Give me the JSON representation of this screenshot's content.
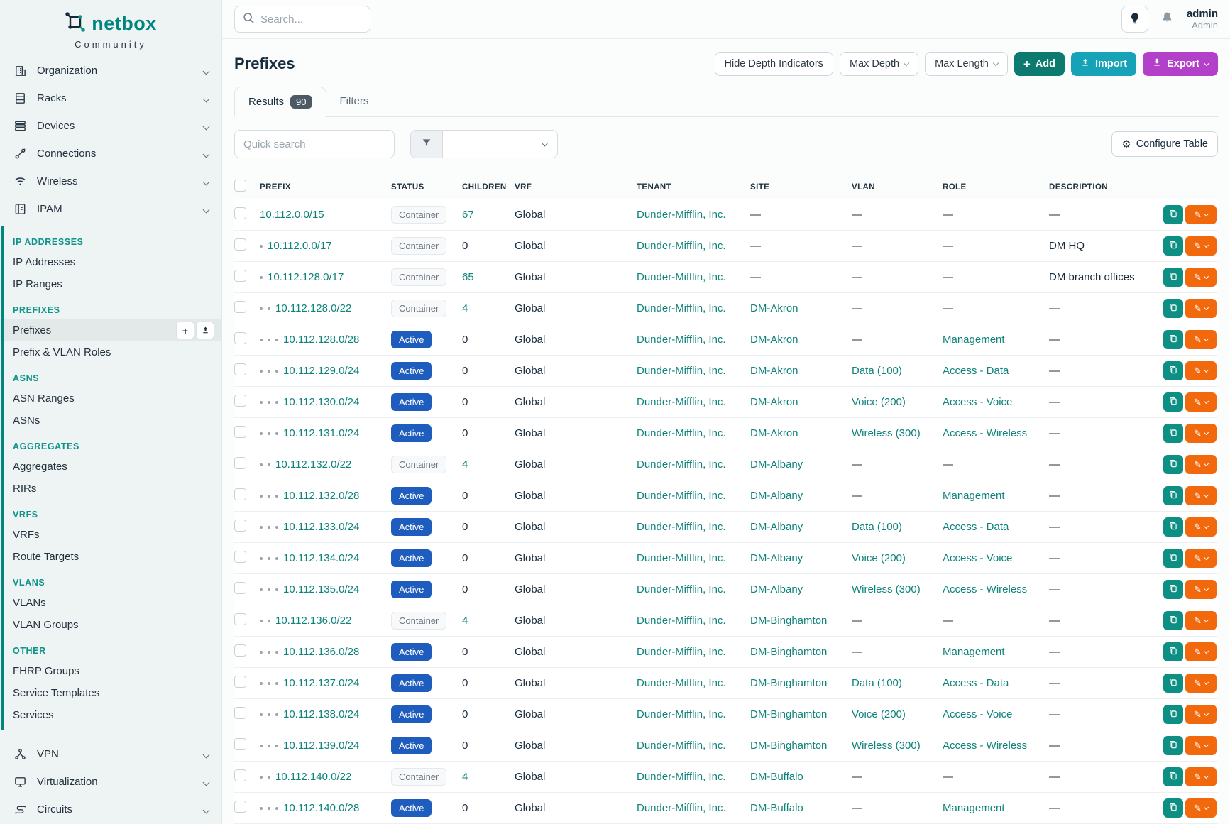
{
  "brand": {
    "name": "netbox",
    "community": "Community"
  },
  "sidebar": {
    "top_items": [
      {
        "label": "Organization",
        "icon": "building-icon"
      },
      {
        "label": "Racks",
        "icon": "rack-icon"
      },
      {
        "label": "Devices",
        "icon": "devices-icon"
      },
      {
        "label": "Connections",
        "icon": "plug-icon"
      },
      {
        "label": "Wireless",
        "icon": "wifi-icon"
      },
      {
        "label": "IPAM",
        "icon": "ipam-icon"
      }
    ],
    "ipam_sections": [
      {
        "heading": "IP ADDRESSES",
        "items": [
          {
            "label": "IP Addresses"
          },
          {
            "label": "IP Ranges"
          }
        ]
      },
      {
        "heading": "PREFIXES",
        "items": [
          {
            "label": "Prefixes",
            "active": true,
            "mini_buttons": [
              "add",
              "import"
            ]
          },
          {
            "label": "Prefix & VLAN Roles"
          }
        ]
      },
      {
        "heading": "ASNS",
        "items": [
          {
            "label": "ASN Ranges"
          },
          {
            "label": "ASNs"
          }
        ]
      },
      {
        "heading": "AGGREGATES",
        "items": [
          {
            "label": "Aggregates"
          },
          {
            "label": "RIRs"
          }
        ]
      },
      {
        "heading": "VRFS",
        "items": [
          {
            "label": "VRFs"
          },
          {
            "label": "Route Targets"
          }
        ]
      },
      {
        "heading": "VLANS",
        "items": [
          {
            "label": "VLANs"
          },
          {
            "label": "VLAN Groups"
          }
        ]
      },
      {
        "heading": "OTHER",
        "items": [
          {
            "label": "FHRP Groups"
          },
          {
            "label": "Service Templates"
          },
          {
            "label": "Services"
          }
        ]
      }
    ],
    "bottom_items": [
      {
        "label": "VPN",
        "icon": "vpn-icon"
      },
      {
        "label": "Virtualization",
        "icon": "virtualization-icon"
      },
      {
        "label": "Circuits",
        "icon": "circuits-icon"
      }
    ]
  },
  "topbar": {
    "search_placeholder": "Search...",
    "user": {
      "name": "admin",
      "role": "Admin"
    }
  },
  "page": {
    "title": "Prefixes",
    "toolbar": {
      "hide_depth": "Hide Depth Indicators",
      "max_depth": "Max Depth",
      "max_length": "Max Length",
      "add": "Add",
      "import": "Import",
      "export": "Export"
    }
  },
  "tabs": {
    "results_label": "Results",
    "results_count": "90",
    "filters_label": "Filters"
  },
  "controls": {
    "quick_search_placeholder": "Quick search",
    "configure_table": "Configure Table"
  },
  "colors": {
    "brand_teal": "#00857e",
    "link_teal": "#0d837a",
    "active_badge_blue": "#1e5cbe",
    "add_button": "#0d7a70",
    "import_button": "#16a3b8",
    "export_button": "#b340c8",
    "copy_button": "#0e8f83",
    "edit_button": "#f2680d"
  },
  "table": {
    "columns": [
      "PREFIX",
      "STATUS",
      "CHILDREN",
      "VRF",
      "TENANT",
      "SITE",
      "VLAN",
      "ROLE",
      "DESCRIPTION"
    ],
    "dash": "—",
    "rows": [
      {
        "prefix": "10.112.0.0/15",
        "depth": 0,
        "status": "Container",
        "children": "67",
        "children_link": true,
        "vrf": "Global",
        "tenant": "Dunder-Mifflin, Inc.",
        "site": "—",
        "vlan": "—",
        "role": "—",
        "description": "—"
      },
      {
        "prefix": "10.112.0.0/17",
        "depth": 1,
        "status": "Container",
        "children": "0",
        "children_link": false,
        "vrf": "Global",
        "tenant": "Dunder-Mifflin, Inc.",
        "site": "—",
        "vlan": "—",
        "role": "—",
        "description": "DM HQ"
      },
      {
        "prefix": "10.112.128.0/17",
        "depth": 1,
        "status": "Container",
        "children": "65",
        "children_link": true,
        "vrf": "Global",
        "tenant": "Dunder-Mifflin, Inc.",
        "site": "—",
        "vlan": "—",
        "role": "—",
        "description": "DM branch offices"
      },
      {
        "prefix": "10.112.128.0/22",
        "depth": 2,
        "status": "Container",
        "children": "4",
        "children_link": true,
        "vrf": "Global",
        "tenant": "Dunder-Mifflin, Inc.",
        "site": "DM-Akron",
        "vlan": "—",
        "role": "—",
        "description": "—"
      },
      {
        "prefix": "10.112.128.0/28",
        "depth": 3,
        "status": "Active",
        "children": "0",
        "children_link": false,
        "vrf": "Global",
        "tenant": "Dunder-Mifflin, Inc.",
        "site": "DM-Akron",
        "vlan": "—",
        "role": "Management",
        "description": "—"
      },
      {
        "prefix": "10.112.129.0/24",
        "depth": 3,
        "status": "Active",
        "children": "0",
        "children_link": false,
        "vrf": "Global",
        "tenant": "Dunder-Mifflin, Inc.",
        "site": "DM-Akron",
        "vlan": "Data (100)",
        "role": "Access - Data",
        "description": "—"
      },
      {
        "prefix": "10.112.130.0/24",
        "depth": 3,
        "status": "Active",
        "children": "0",
        "children_link": false,
        "vrf": "Global",
        "tenant": "Dunder-Mifflin, Inc.",
        "site": "DM-Akron",
        "vlan": "Voice (200)",
        "role": "Access - Voice",
        "description": "—"
      },
      {
        "prefix": "10.112.131.0/24",
        "depth": 3,
        "status": "Active",
        "children": "0",
        "children_link": false,
        "vrf": "Global",
        "tenant": "Dunder-Mifflin, Inc.",
        "site": "DM-Akron",
        "vlan": "Wireless (300)",
        "role": "Access - Wireless",
        "description": "—"
      },
      {
        "prefix": "10.112.132.0/22",
        "depth": 2,
        "status": "Container",
        "children": "4",
        "children_link": true,
        "vrf": "Global",
        "tenant": "Dunder-Mifflin, Inc.",
        "site": "DM-Albany",
        "vlan": "—",
        "role": "—",
        "description": "—"
      },
      {
        "prefix": "10.112.132.0/28",
        "depth": 3,
        "status": "Active",
        "children": "0",
        "children_link": false,
        "vrf": "Global",
        "tenant": "Dunder-Mifflin, Inc.",
        "site": "DM-Albany",
        "vlan": "—",
        "role": "Management",
        "description": "—"
      },
      {
        "prefix": "10.112.133.0/24",
        "depth": 3,
        "status": "Active",
        "children": "0",
        "children_link": false,
        "vrf": "Global",
        "tenant": "Dunder-Mifflin, Inc.",
        "site": "DM-Albany",
        "vlan": "Data (100)",
        "role": "Access - Data",
        "description": "—"
      },
      {
        "prefix": "10.112.134.0/24",
        "depth": 3,
        "status": "Active",
        "children": "0",
        "children_link": false,
        "vrf": "Global",
        "tenant": "Dunder-Mifflin, Inc.",
        "site": "DM-Albany",
        "vlan": "Voice (200)",
        "role": "Access - Voice",
        "description": "—"
      },
      {
        "prefix": "10.112.135.0/24",
        "depth": 3,
        "status": "Active",
        "children": "0",
        "children_link": false,
        "vrf": "Global",
        "tenant": "Dunder-Mifflin, Inc.",
        "site": "DM-Albany",
        "vlan": "Wireless (300)",
        "role": "Access - Wireless",
        "description": "—"
      },
      {
        "prefix": "10.112.136.0/22",
        "depth": 2,
        "status": "Container",
        "children": "4",
        "children_link": true,
        "vrf": "Global",
        "tenant": "Dunder-Mifflin, Inc.",
        "site": "DM-Binghamton",
        "vlan": "—",
        "role": "—",
        "description": "—"
      },
      {
        "prefix": "10.112.136.0/28",
        "depth": 3,
        "status": "Active",
        "children": "0",
        "children_link": false,
        "vrf": "Global",
        "tenant": "Dunder-Mifflin, Inc.",
        "site": "DM-Binghamton",
        "vlan": "—",
        "role": "Management",
        "description": "—"
      },
      {
        "prefix": "10.112.137.0/24",
        "depth": 3,
        "status": "Active",
        "children": "0",
        "children_link": false,
        "vrf": "Global",
        "tenant": "Dunder-Mifflin, Inc.",
        "site": "DM-Binghamton",
        "vlan": "Data (100)",
        "role": "Access - Data",
        "description": "—"
      },
      {
        "prefix": "10.112.138.0/24",
        "depth": 3,
        "status": "Active",
        "children": "0",
        "children_link": false,
        "vrf": "Global",
        "tenant": "Dunder-Mifflin, Inc.",
        "site": "DM-Binghamton",
        "vlan": "Voice (200)",
        "role": "Access - Voice",
        "description": "—"
      },
      {
        "prefix": "10.112.139.0/24",
        "depth": 3,
        "status": "Active",
        "children": "0",
        "children_link": false,
        "vrf": "Global",
        "tenant": "Dunder-Mifflin, Inc.",
        "site": "DM-Binghamton",
        "vlan": "Wireless (300)",
        "role": "Access - Wireless",
        "description": "—"
      },
      {
        "prefix": "10.112.140.0/22",
        "depth": 2,
        "status": "Container",
        "children": "4",
        "children_link": true,
        "vrf": "Global",
        "tenant": "Dunder-Mifflin, Inc.",
        "site": "DM-Buffalo",
        "vlan": "—",
        "role": "—",
        "description": "—"
      },
      {
        "prefix": "10.112.140.0/28",
        "depth": 3,
        "status": "Active",
        "children": "0",
        "children_link": false,
        "vrf": "Global",
        "tenant": "Dunder-Mifflin, Inc.",
        "site": "DM-Buffalo",
        "vlan": "—",
        "role": "Management",
        "description": "—"
      }
    ]
  }
}
